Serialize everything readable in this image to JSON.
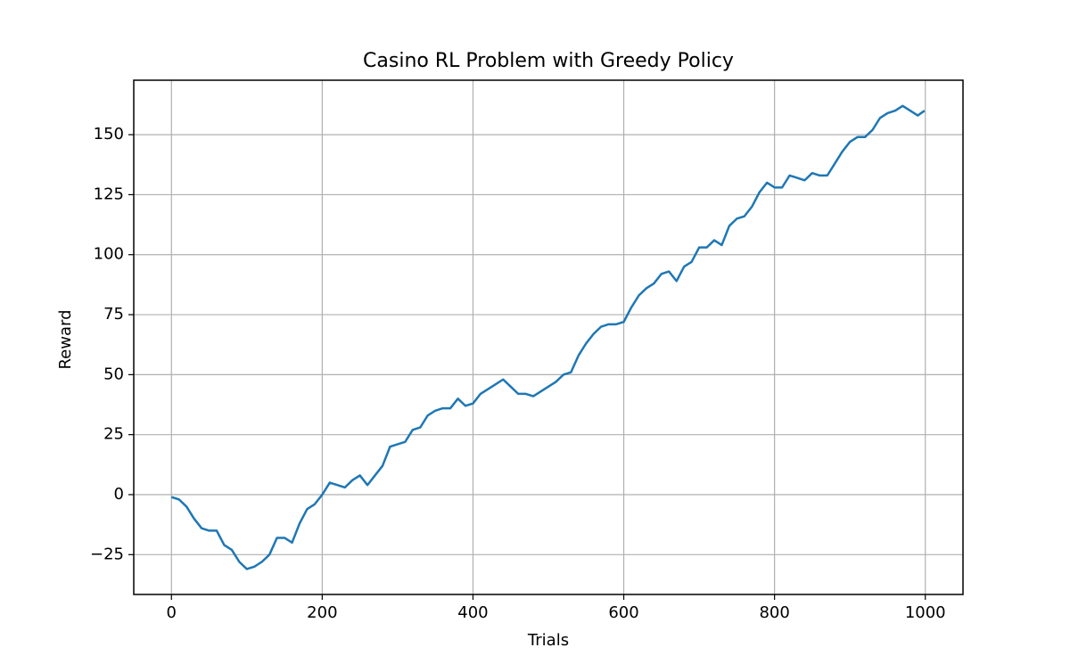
{
  "chart_data": {
    "type": "line",
    "title": "Casino RL Problem with Greedy Policy",
    "x_label": "Trials",
    "y_label": "Reward",
    "x": [
      0,
      10,
      20,
      30,
      40,
      50,
      60,
      70,
      80,
      90,
      100,
      110,
      120,
      130,
      140,
      150,
      160,
      170,
      180,
      190,
      200,
      210,
      220,
      230,
      240,
      250,
      260,
      270,
      280,
      290,
      300,
      310,
      320,
      330,
      340,
      350,
      360,
      370,
      380,
      390,
      400,
      410,
      420,
      430,
      440,
      450,
      460,
      470,
      480,
      490,
      500,
      510,
      520,
      530,
      540,
      550,
      560,
      570,
      580,
      590,
      600,
      610,
      620,
      630,
      640,
      650,
      660,
      670,
      680,
      690,
      700,
      710,
      720,
      730,
      740,
      750,
      760,
      770,
      780,
      790,
      800,
      810,
      820,
      830,
      840,
      850,
      860,
      870,
      880,
      890,
      900,
      910,
      920,
      930,
      940,
      950,
      960,
      970,
      980,
      990,
      999
    ],
    "series": [
      {
        "name": "Reward",
        "color": "#1f77b4",
        "values": [
          -1,
          -2,
          -5,
          -10,
          -14,
          -15,
          -15,
          -21,
          -23,
          -28,
          -31,
          -30,
          -28,
          -25,
          -18,
          -18,
          -20,
          -12,
          -6,
          -4,
          0,
          5,
          4,
          3,
          6,
          8,
          4,
          8,
          12,
          20,
          21,
          22,
          27,
          28,
          33,
          35,
          36,
          36,
          40,
          37,
          38,
          42,
          44,
          46,
          48,
          45,
          42,
          42,
          41,
          43,
          45,
          47,
          50,
          51,
          58,
          63,
          67,
          70,
          71,
          71,
          72,
          78,
          83,
          86,
          88,
          92,
          93,
          89,
          95,
          97,
          103,
          103,
          106,
          104,
          112,
          115,
          116,
          120,
          126,
          130,
          128,
          128,
          133,
          132,
          131,
          134,
          133,
          133,
          138,
          143,
          147,
          149,
          149,
          152,
          157,
          159,
          160,
          162,
          160,
          158,
          160
        ]
      }
    ],
    "xlim": [
      -50,
      1050
    ],
    "ylim": [
      -41.6,
      172.7
    ],
    "xticks": [
      0,
      200,
      400,
      600,
      800,
      1000
    ],
    "yticks": [
      {
        "value": -25,
        "label": "−25"
      },
      0,
      25,
      50,
      75,
      100,
      125,
      150
    ],
    "grid": true
  }
}
